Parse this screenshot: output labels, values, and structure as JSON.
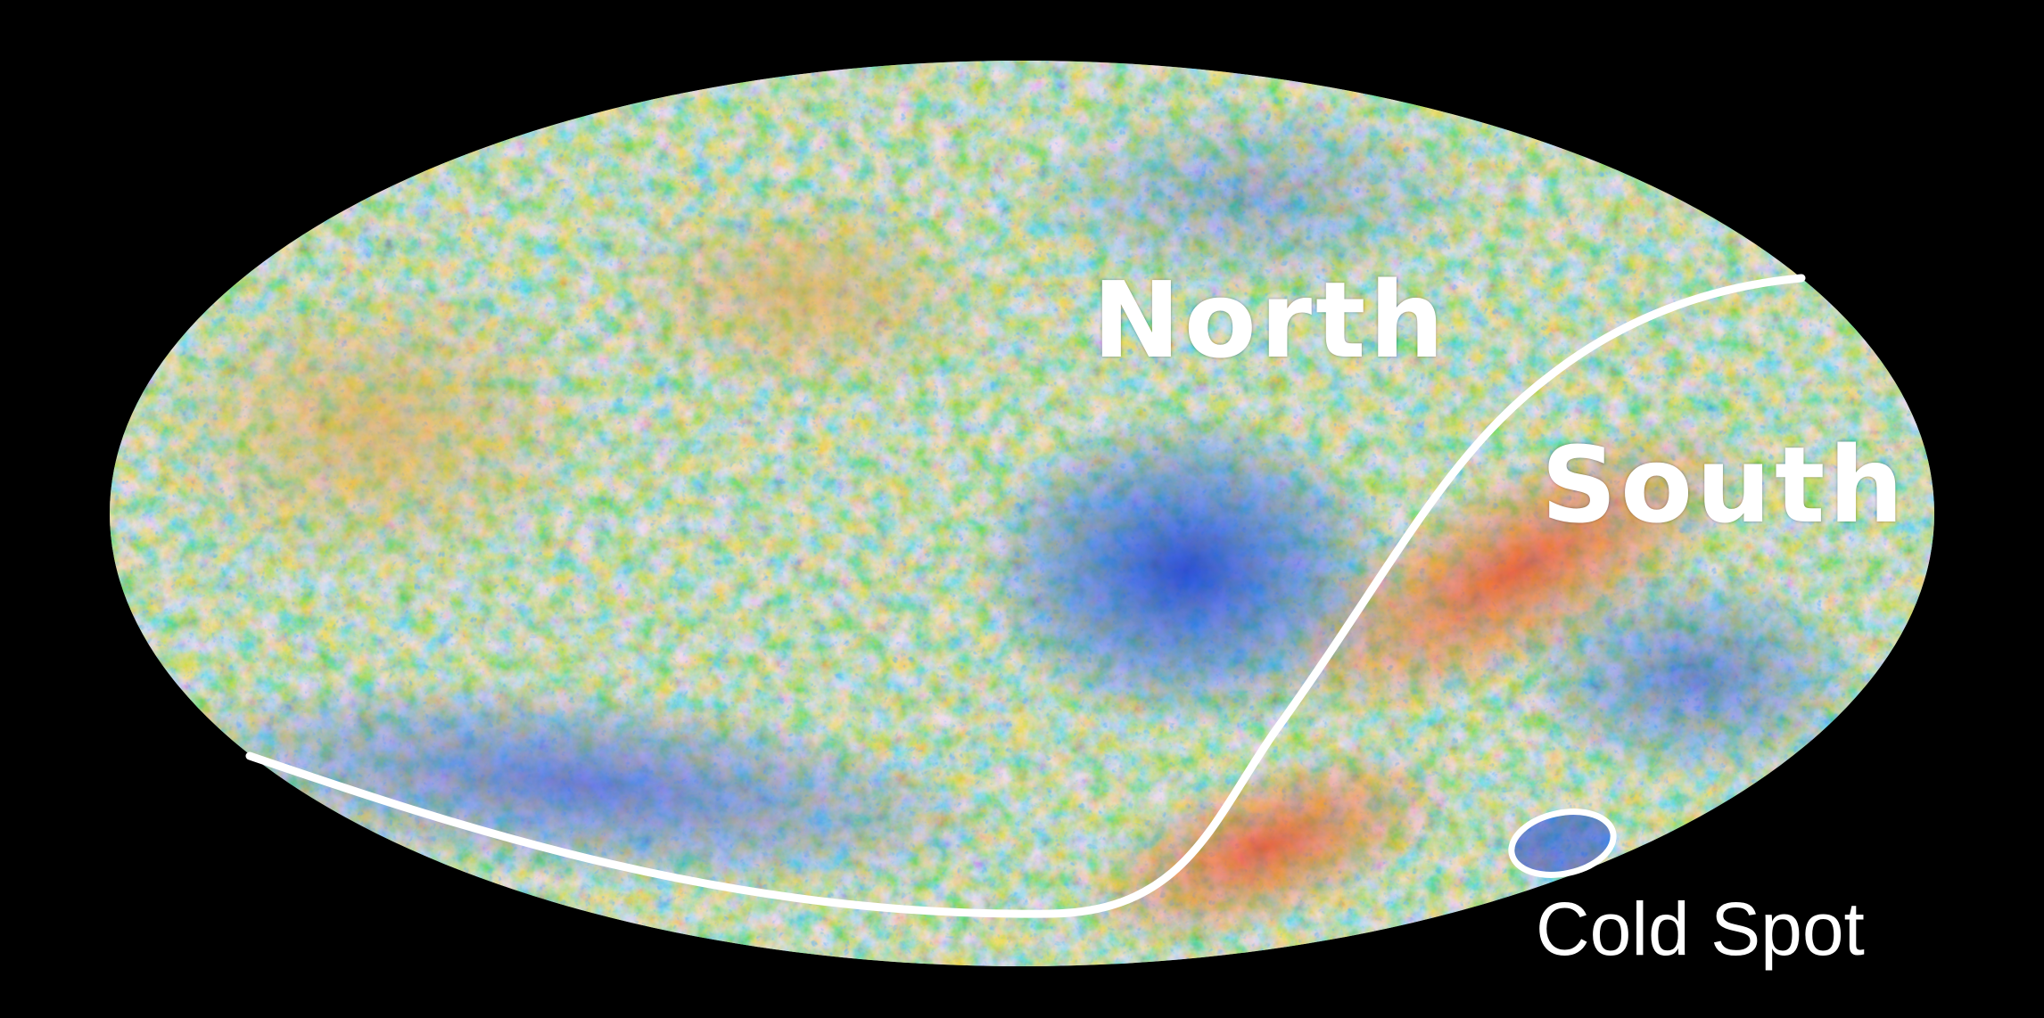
{
  "labels": {
    "north": "North",
    "south": "South",
    "cold_spot": "Cold Spot"
  },
  "colors": {
    "background": "#000000",
    "boundary_line": "#ffffff",
    "cold": "#1f4fe0",
    "cool": "#3aa7e8",
    "neutral": "#8ac8a8",
    "warm": "#e8b04a",
    "hot": "#e8452a"
  }
}
